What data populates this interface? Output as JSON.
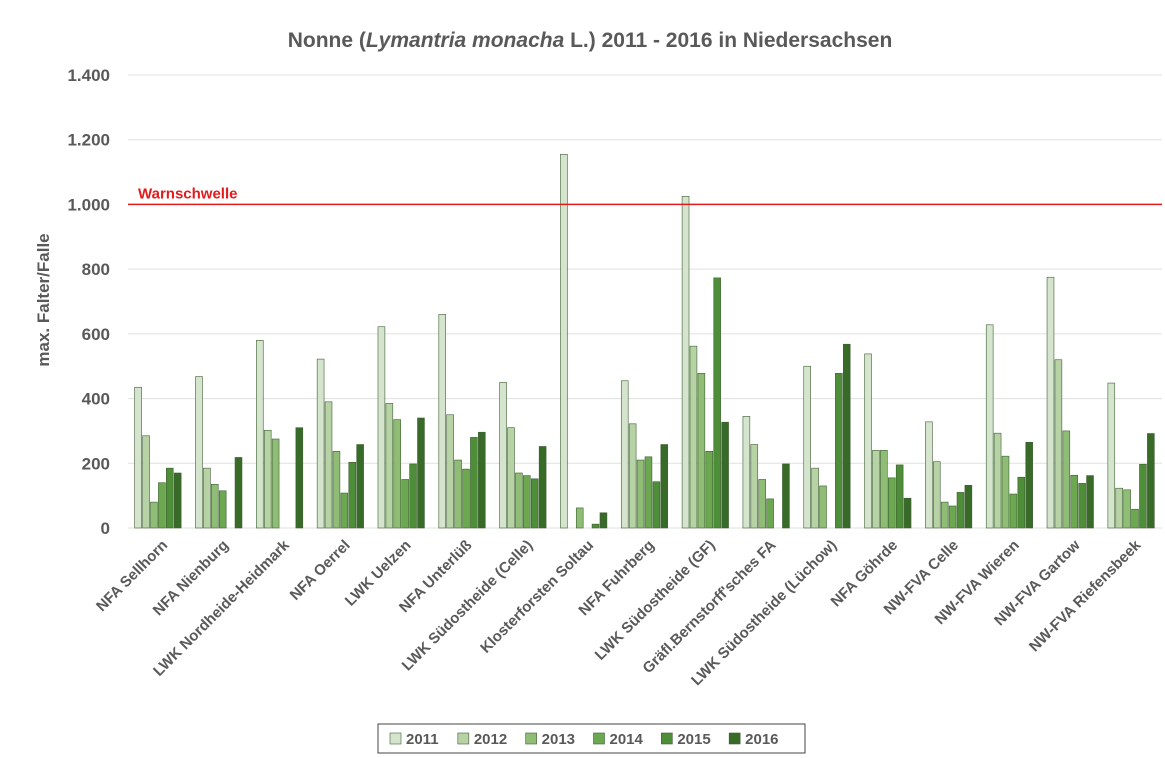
{
  "chart_data": {
    "type": "bar",
    "title": [
      "Nonne (",
      "Lymantria monacha",
      " L.) 2011 - 2016 in Niedersachsen"
    ],
    "y_label": "max. Falter/Falle",
    "categories": [
      "NFA Sellhorn",
      "NFA Nienburg",
      "LWK Nordheide-Heidmark",
      "NFA Oerrel",
      "LWK Uelzen",
      "NFA Unterlüß",
      "LWK Südostheide (Celle)",
      "Klosterforsten Soltau",
      "NFA Fuhrberg",
      "LWK Südostheide (GF)",
      "Gräfl.Bernstorff'sches FA",
      "LWK Südostheide (Lüchow)",
      "NFA Göhrde",
      "NW-FVA  Celle",
      "NW-FVA Wieren",
      "NW-FVA Gartow",
      "NW-FVA Riefensbeek"
    ],
    "series": [
      {
        "name": "2011",
        "color": "#d5e4cd",
        "values": [
          435,
          468,
          580,
          522,
          622,
          660,
          450,
          1155,
          455,
          1025,
          345,
          500,
          538,
          328,
          628,
          775,
          448
        ]
      },
      {
        "name": "2012",
        "color": "#b7d3a6",
        "values": [
          285,
          185,
          302,
          390,
          385,
          350,
          310,
          0,
          322,
          562,
          258,
          185,
          240,
          205,
          293,
          520,
          123
        ]
      },
      {
        "name": "2013",
        "color": "#8fbd76",
        "values": [
          80,
          135,
          275,
          237,
          335,
          210,
          170,
          62,
          210,
          478,
          150,
          130,
          240,
          80,
          222,
          300,
          118
        ]
      },
      {
        "name": "2014",
        "color": "#6ba84f",
        "values": [
          140,
          115,
          0,
          108,
          150,
          182,
          162,
          0,
          220,
          237,
          90,
          0,
          155,
          68,
          105,
          163,
          58
        ]
      },
      {
        "name": "2015",
        "color": "#4e8e38",
        "values": [
          185,
          0,
          0,
          203,
          198,
          280,
          152,
          12,
          143,
          773,
          0,
          478,
          195,
          110,
          157,
          138,
          197
        ]
      },
      {
        "name": "2016",
        "color": "#386a28",
        "values": [
          170,
          218,
          310,
          258,
          340,
          296,
          252,
          47,
          258,
          327,
          198,
          568,
          92,
          132,
          265,
          162,
          292
        ]
      }
    ],
    "ylim": [
      0,
      1400
    ],
    "yticks": [
      0,
      200,
      400,
      600,
      800,
      {
        "value": 1000,
        "label": "1.000"
      },
      {
        "value": 1200,
        "label": "1.200"
      },
      {
        "value": 1400,
        "label": "1.400"
      }
    ],
    "grid": true,
    "legend": "bottom",
    "threshold": {
      "label": "Warnschwelle",
      "value": 1000,
      "color": "#e31a1c"
    }
  }
}
